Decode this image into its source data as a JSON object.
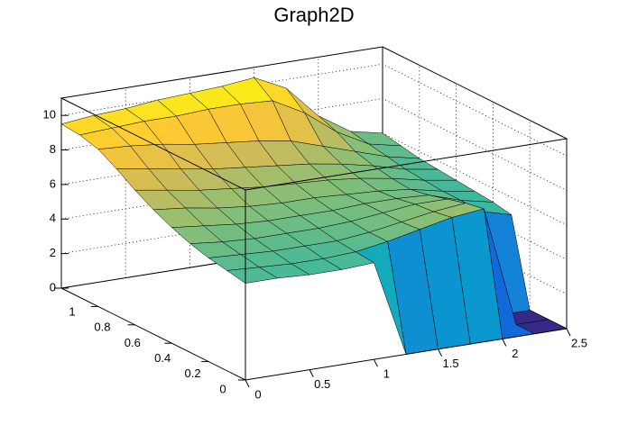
{
  "chart_data": {
    "type": "surface",
    "title": "Graph2D",
    "x": [
      0,
      0.25,
      0.5,
      0.75,
      1,
      1.25,
      1.5,
      1.75,
      2,
      2.25,
      2.5
    ],
    "y": [
      0,
      0.1,
      0.2,
      0.3,
      0.4,
      0.5,
      0.6,
      0.7,
      0.8,
      0.9,
      1
    ],
    "z": [
      [
        5.6,
        5.6,
        5.5,
        5.5,
        5.6,
        0,
        0,
        0,
        0,
        0,
        0
      ],
      [
        5.8,
        5.7,
        5.6,
        5.6,
        5.7,
        6.0,
        6.4,
        6.8,
        7.0,
        0,
        0
      ],
      [
        6.0,
        5.9,
        5.8,
        5.8,
        5.8,
        6.0,
        6.3,
        6.6,
        6.8,
        0,
        0
      ],
      [
        6.3,
        6.1,
        6.0,
        6.0,
        6.0,
        6.1,
        6.3,
        6.5,
        6.5,
        5.5,
        5.0
      ],
      [
        6.7,
        6.5,
        6.3,
        6.2,
        6.2,
        6.2,
        6.3,
        6.3,
        6.2,
        5.6,
        5.2
      ],
      [
        7.2,
        7.0,
        6.7,
        6.5,
        6.4,
        6.4,
        6.3,
        6.2,
        6.0,
        5.6,
        5.3
      ],
      [
        7.8,
        7.5,
        7.2,
        7.0,
        6.8,
        6.7,
        6.6,
        6.4,
        6.1,
        5.7,
        5.4
      ],
      [
        8.5,
        8.2,
        7.9,
        7.6,
        7.4,
        7.2,
        7.0,
        6.7,
        6.3,
        5.8,
        5.5
      ],
      [
        9.1,
        9.0,
        8.8,
        8.5,
        8.3,
        8.1,
        7.8,
        7.2,
        6.6,
        6.0,
        5.6
      ],
      [
        9.4,
        9.5,
        9.6,
        9.6,
        9.7,
        9.7,
        9.6,
        8.6,
        7.2,
        6.2,
        5.8
      ],
      [
        9.5,
        9.7,
        9.8,
        10.0,
        10.1,
        10.2,
        10.4,
        9.5,
        7.6,
        6.4,
        6.0
      ]
    ],
    "xlim": [
      0,
      2.5
    ],
    "ylim": [
      0,
      1
    ],
    "zlim": [
      0,
      11
    ],
    "xticks": [
      0,
      0.5,
      1,
      1.5,
      2,
      2.5
    ],
    "yticks": [
      0,
      0.2,
      0.4,
      0.6,
      0.8,
      1
    ],
    "zticks": [
      0,
      2,
      4,
      6,
      8,
      10
    ],
    "grid": true
  }
}
